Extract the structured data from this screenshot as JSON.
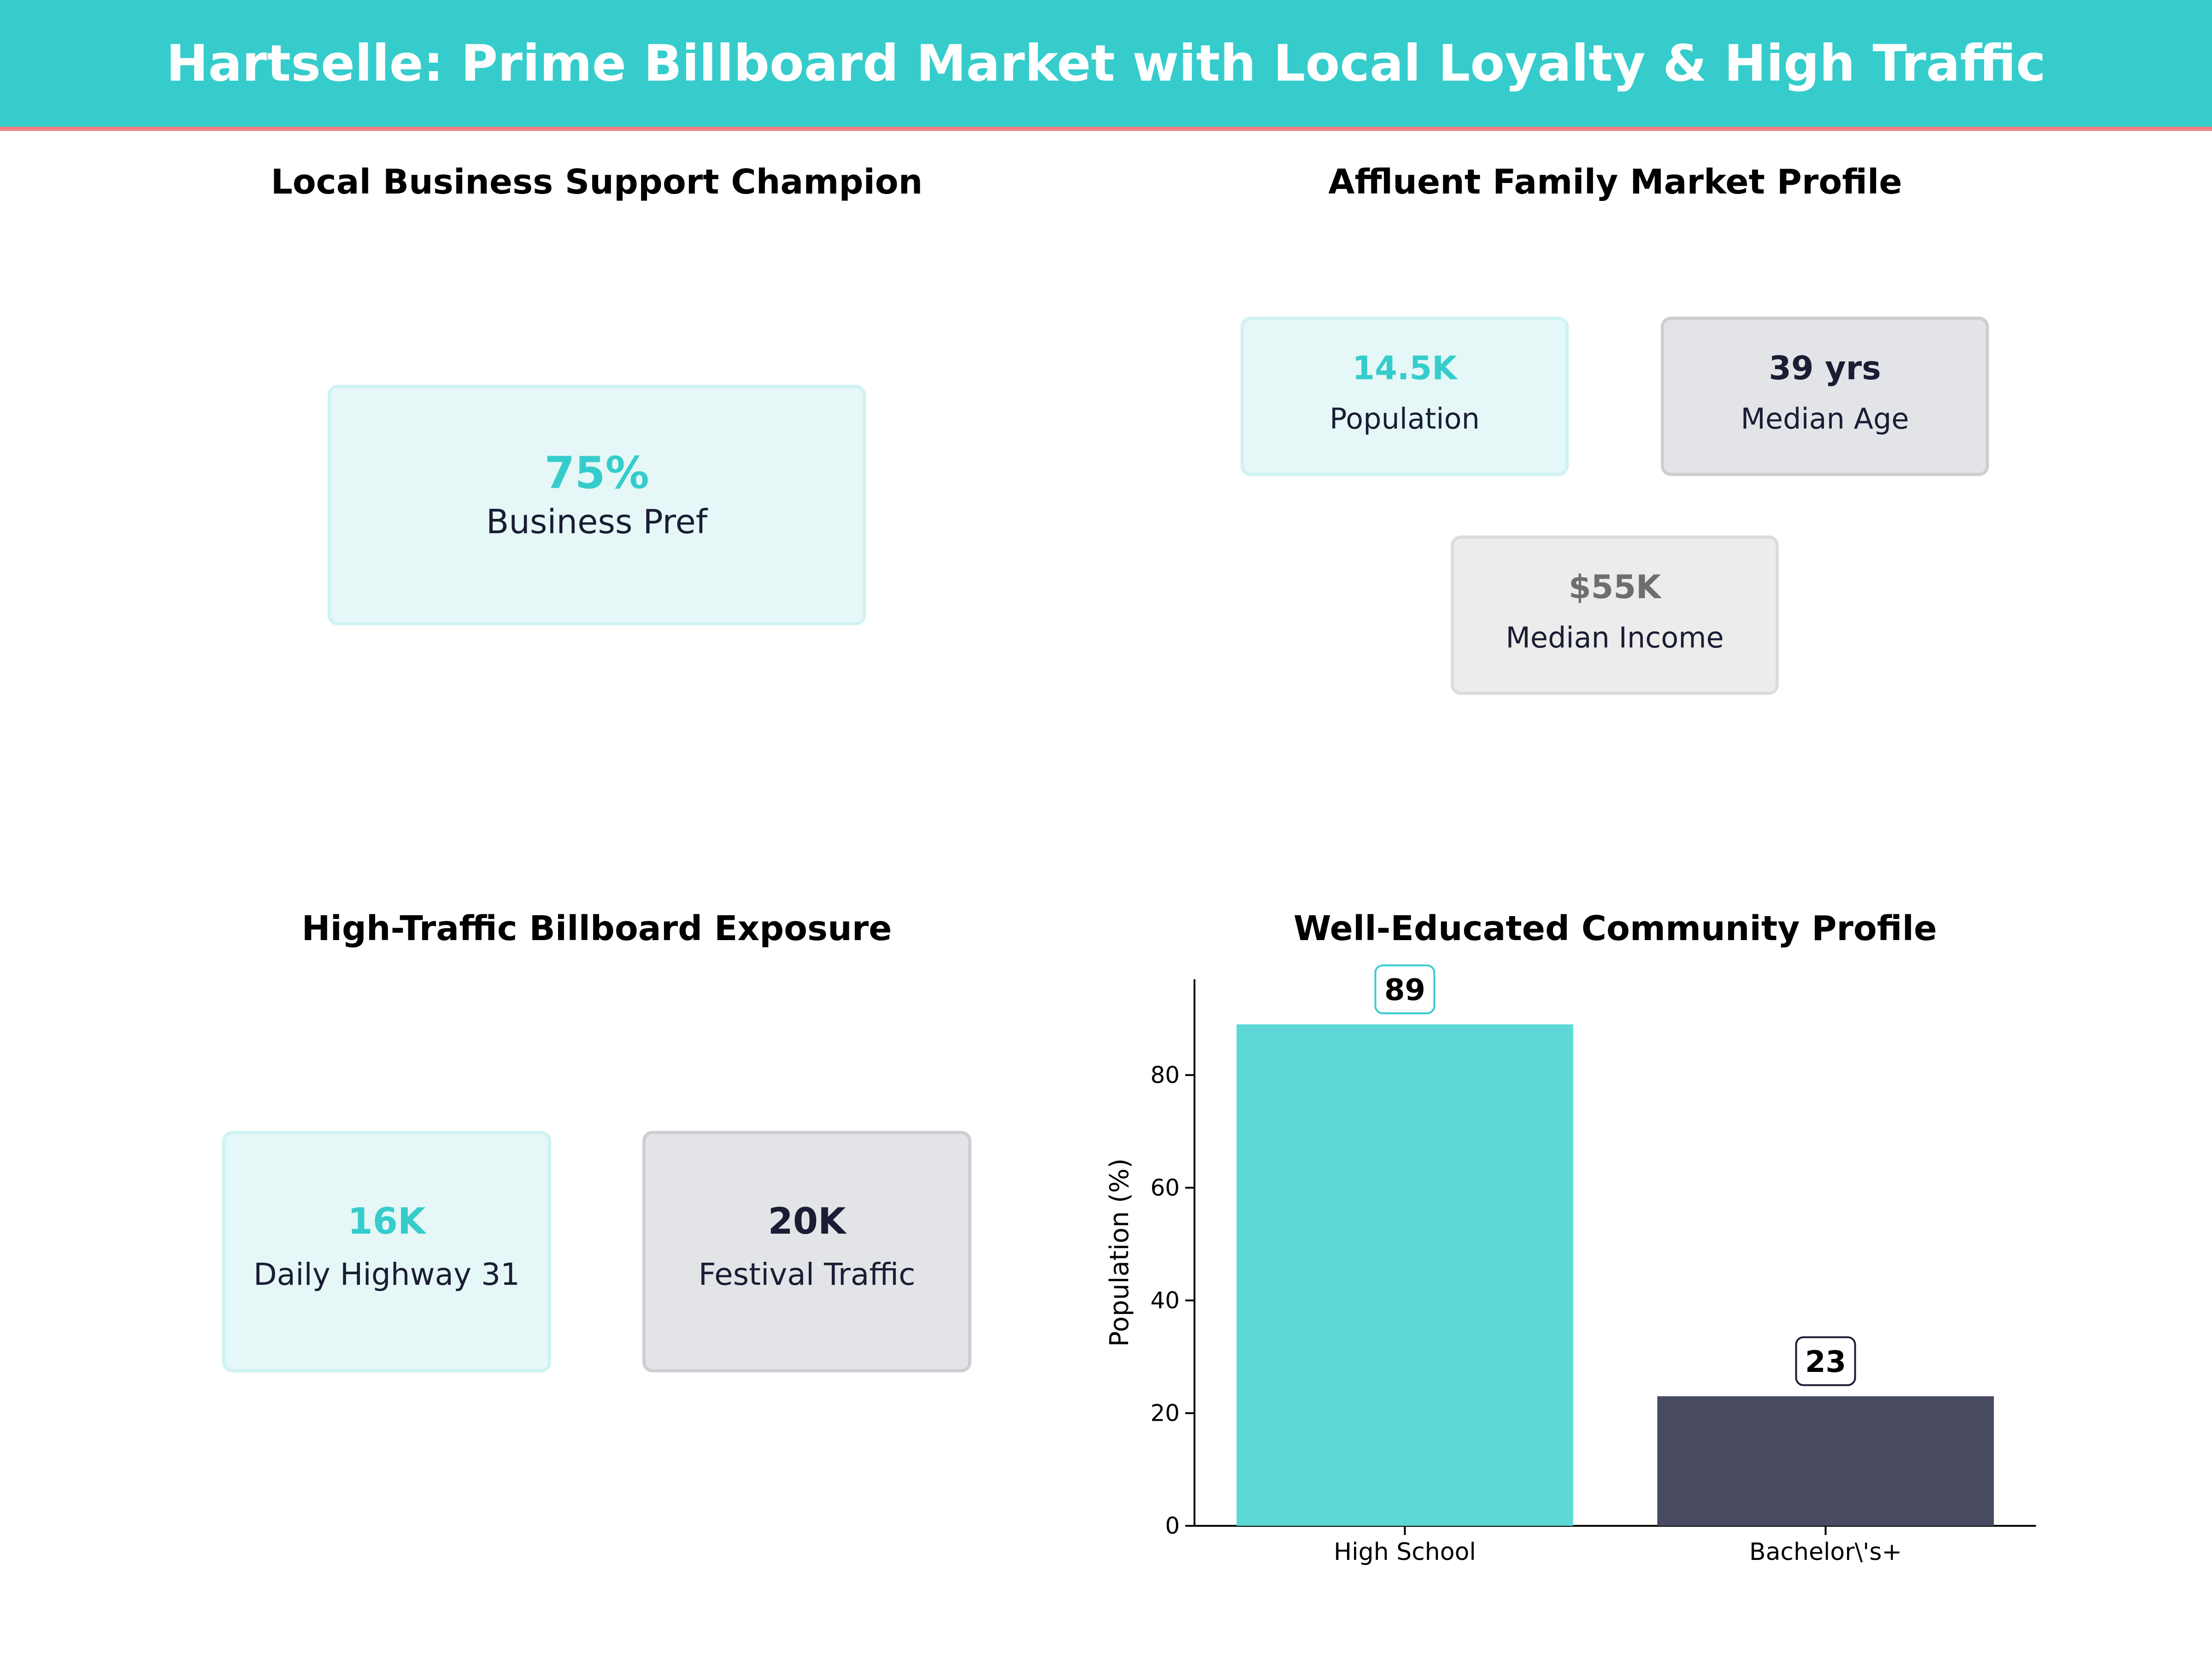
{
  "header": {
    "title": "Hartselle: Prime Billboard Market with Local Loyalty & High Traffic"
  },
  "colors": {
    "accent": "#36cccc",
    "navy": "#1a1d33",
    "gray": "#6e6e6e",
    "header_rule": "#f07f86"
  },
  "panels": {
    "business": {
      "title": "Local Business Support Champion",
      "card": {
        "value": "75%",
        "label": "Business Pref"
      }
    },
    "family": {
      "title": "Affluent Family Market Profile",
      "cards": [
        {
          "value": "14.5K",
          "label": "Population"
        },
        {
          "value": "39 yrs",
          "label": "Median Age"
        },
        {
          "value": "$55K",
          "label": "Median Income"
        }
      ]
    },
    "traffic": {
      "title": "High-Traffic Billboard Exposure",
      "cards": [
        {
          "value": "16K",
          "label": "Daily Highway 31"
        },
        {
          "value": "20K",
          "label": "Festival Traffic"
        }
      ]
    },
    "education": {
      "title": "Well-Educated Community Profile"
    }
  },
  "chart_data": {
    "type": "bar",
    "title": "Well-Educated Community Profile",
    "categories": [
      "High School",
      "Bachelor\\'s+"
    ],
    "values": [
      89,
      23
    ],
    "value_labels": [
      "89",
      "23"
    ],
    "colors": [
      "#5dd8d6",
      "#474a61"
    ],
    "label_border_colors": [
      "#36cccc",
      "#1a1d33"
    ],
    "xlabel": "",
    "ylabel": "Population (%)",
    "ylim": [
      0,
      97
    ],
    "yticks": [
      0,
      20,
      40,
      60,
      80
    ],
    "grid": false
  }
}
